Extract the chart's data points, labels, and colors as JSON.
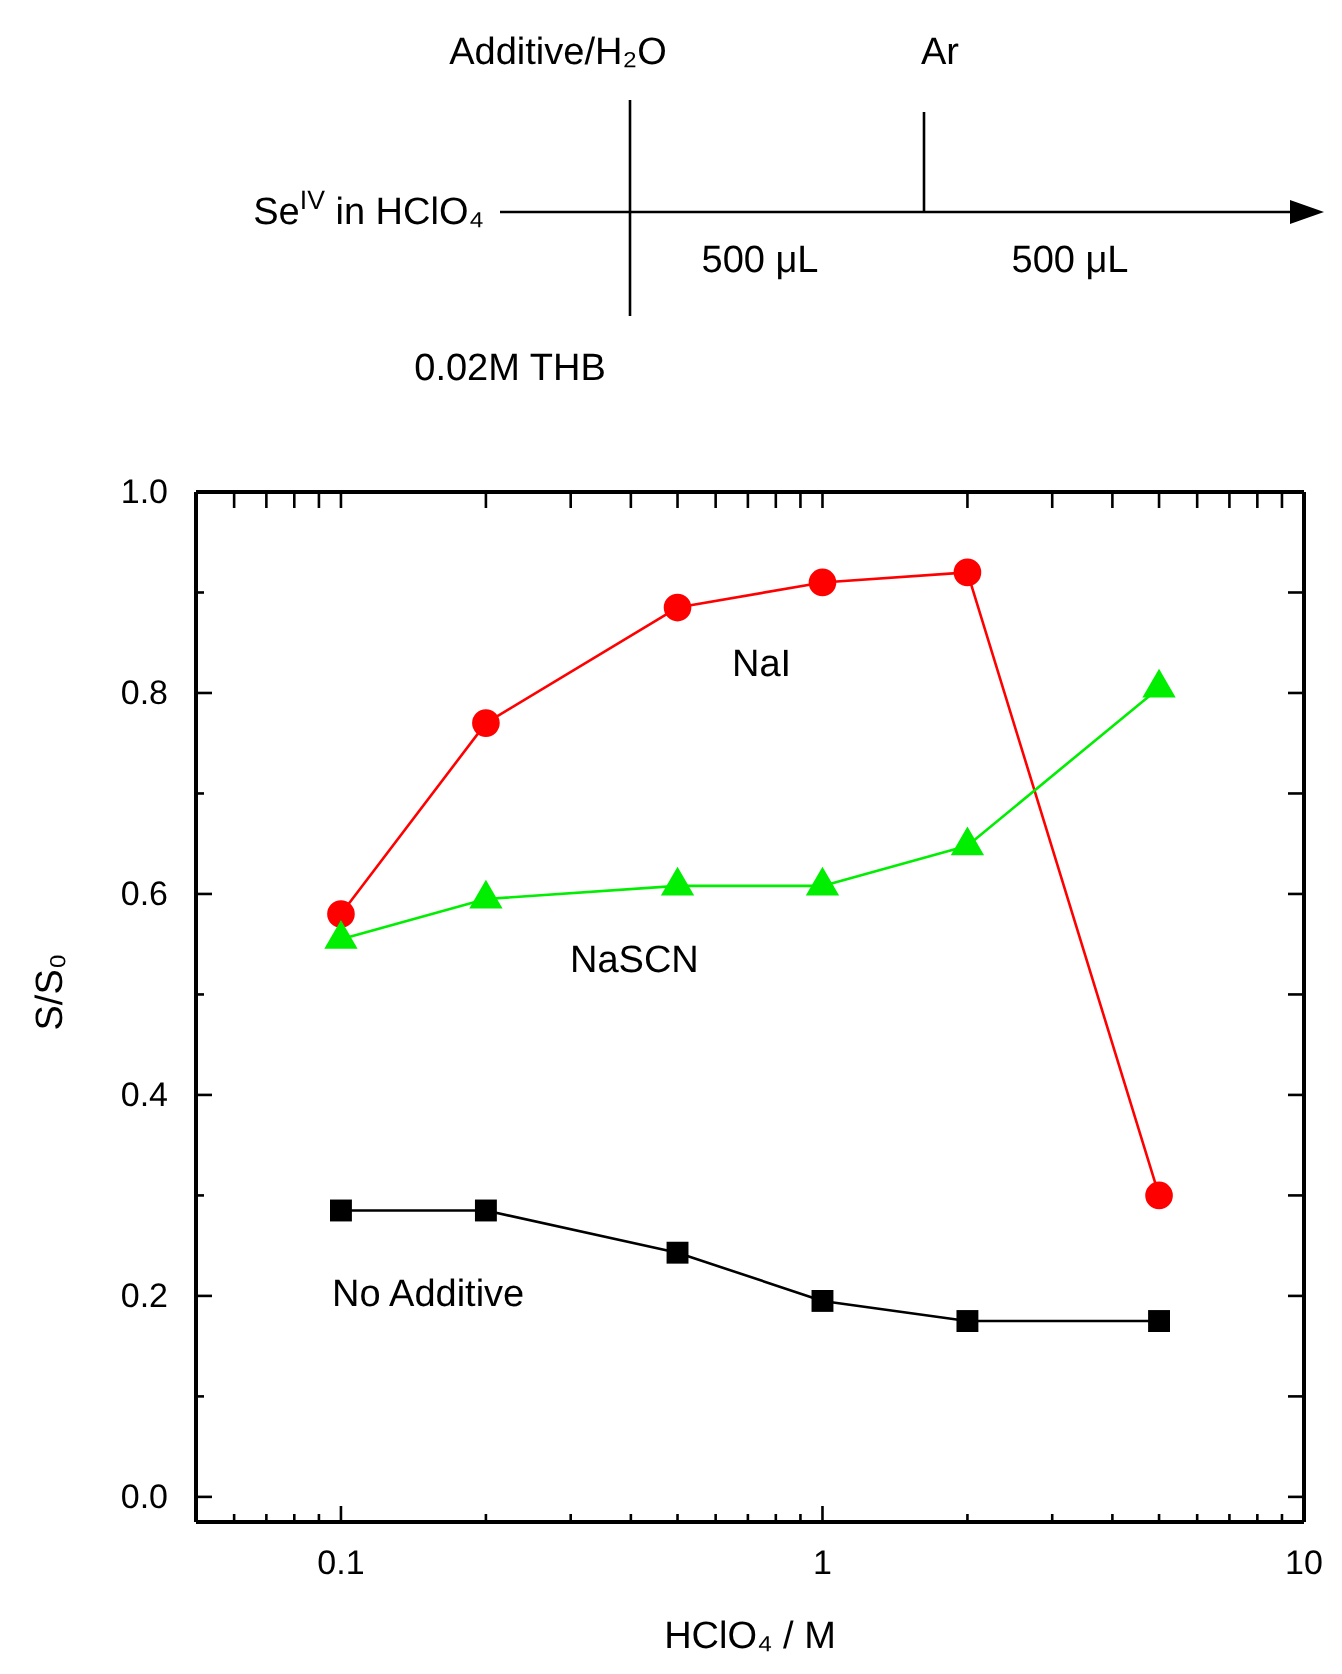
{
  "chart_data": {
    "type": "line",
    "xlabel": "HClO₄ / M",
    "ylabel": "S/S₀",
    "log": "x",
    "x": [
      0.1,
      0.2,
      0.5,
      1,
      2,
      5
    ],
    "xlim": [
      0.05,
      10
    ],
    "xticks": [
      0.1,
      1,
      10,
      {
        "value": 0.06,
        "label": null
      },
      {
        "value": 0.07,
        "label": null
      },
      {
        "value": 0.08,
        "label": null
      },
      {
        "value": 0.09,
        "label": null
      },
      {
        "value": 0.2,
        "label": null
      },
      {
        "value": 0.3,
        "label": null
      },
      {
        "value": 0.4,
        "label": null
      },
      {
        "value": 0.5,
        "label": null
      },
      {
        "value": 0.6,
        "label": null
      },
      {
        "value": 0.7,
        "label": null
      },
      {
        "value": 0.8,
        "label": null
      },
      {
        "value": 0.9,
        "label": null
      },
      {
        "value": 2,
        "label": null
      },
      {
        "value": 3,
        "label": null
      },
      {
        "value": 4,
        "label": null
      },
      {
        "value": 5,
        "label": null
      },
      {
        "value": 6,
        "label": null
      },
      {
        "value": 7,
        "label": null
      },
      {
        "value": 8,
        "label": null
      },
      {
        "value": 9,
        "label": null
      }
    ],
    "ylim": [
      -0.025,
      1.0
    ],
    "yticks": [
      {
        "value": 0,
        "label": "0.0"
      },
      {
        "value": 0.2,
        "label": "0.2"
      },
      {
        "value": 0.4,
        "label": "0.4"
      },
      {
        "value": 0.6,
        "label": "0.6"
      },
      {
        "value": 0.8,
        "label": "0.8"
      },
      {
        "value": 1,
        "label": "1.0"
      },
      {
        "value": 0.1,
        "label": null
      },
      {
        "value": 0.3,
        "label": null
      },
      {
        "value": 0.5,
        "label": null
      },
      {
        "value": 0.7,
        "label": null
      },
      {
        "value": 0.9,
        "label": null
      }
    ],
    "grid": false,
    "series": [
      {
        "name": "NaI",
        "color": "#ff0000",
        "marker": "circle",
        "values": [
          0.58,
          0.77,
          0.885,
          0.91,
          0.92,
          0.3
        ]
      },
      {
        "name": "NaSCN",
        "color": "#00ee00",
        "marker": "triangle",
        "values": [
          0.555,
          0.595,
          0.608,
          0.608,
          0.648,
          0.805
        ]
      },
      {
        "name": "No Additive",
        "color": "#000000",
        "marker": "square",
        "values": [
          0.285,
          0.285,
          0.243,
          0.195,
          0.175,
          0.175
        ]
      }
    ],
    "annotations": [
      "Se$^{IV}$ in HClO₄",
      "Additive/H₂O",
      "Ar",
      "500 μL",
      "500 μL",
      "0.02M THB"
    ]
  }
}
